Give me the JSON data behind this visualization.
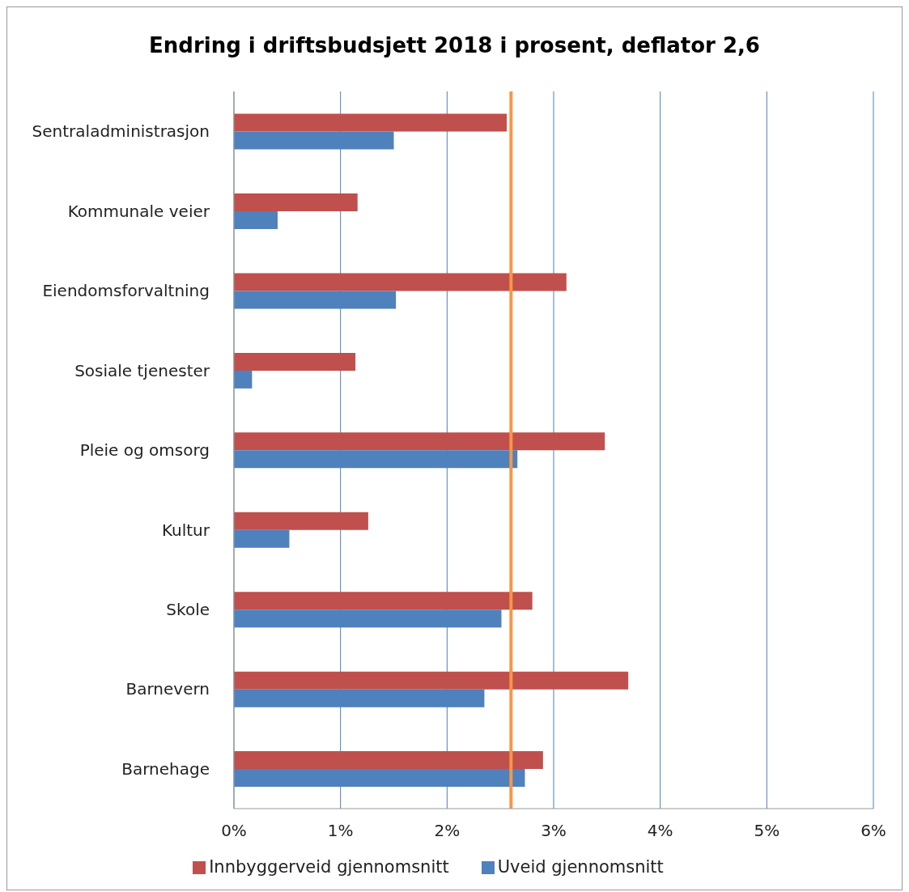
{
  "chart_data": {
    "type": "bar",
    "orientation": "horizontal",
    "title": "Endring i driftsbudsjett 2018 i prosent, deflator 2,6",
    "categories": [
      "Sentraladministrasjon",
      "Kommunale veier",
      "Eiendomsforvaltning",
      "Sosiale tjenester",
      "Pleie og omsorg",
      "Kultur",
      "Skole",
      "Barnevern",
      "Barnehage"
    ],
    "series": [
      {
        "name": "Innbyggerveid gjennomsnitt",
        "color": "#c0504d",
        "values": [
          2.56,
          1.16,
          3.12,
          1.14,
          3.48,
          1.26,
          2.8,
          3.7,
          2.9
        ]
      },
      {
        "name": "Uveid gjennomsnitt",
        "color": "#4f81bd",
        "values": [
          1.5,
          0.41,
          1.52,
          0.17,
          2.66,
          0.52,
          2.51,
          2.35,
          2.73
        ]
      }
    ],
    "xlim": [
      0,
      6
    ],
    "xticks": [
      {
        "value": 0,
        "label": "0%"
      },
      {
        "value": 1,
        "label": "1%"
      },
      {
        "value": 2,
        "label": "2%"
      },
      {
        "value": 3,
        "label": "3%"
      },
      {
        "value": 4,
        "label": "4%"
      },
      {
        "value": 5,
        "label": "5%"
      },
      {
        "value": 6,
        "label": "6%"
      }
    ],
    "ref_lines": [
      {
        "axis": "x",
        "value": 2.6,
        "color": "#f79646"
      }
    ],
    "grid": "x",
    "legend": "bottom"
  }
}
